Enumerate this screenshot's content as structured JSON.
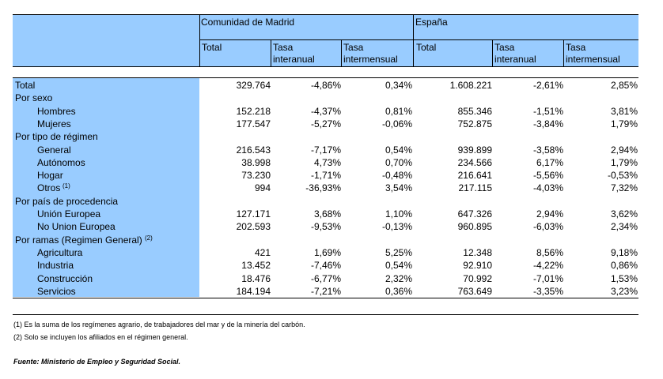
{
  "header": {
    "group1": "Comunidad de Madrid",
    "group2": "España",
    "cols": [
      {
        "l1": "Total",
        "l2": ""
      },
      {
        "l1": "Tasa",
        "l2": "interanual"
      },
      {
        "l1": "Tasa",
        "l2": "intermensual"
      },
      {
        "l1": "Total",
        "l2": ""
      },
      {
        "l1": "Tasa",
        "l2": "interanual"
      },
      {
        "l1": "Tasa",
        "l2": "intermensual"
      }
    ]
  },
  "rows": [
    {
      "label": "Total",
      "sup": "",
      "vals": [
        "329.764",
        "-4,86%",
        "0,34%",
        "1.608.221",
        "-2,61%",
        "2,85%"
      ]
    },
    {
      "label": "Por sexo",
      "sup": "",
      "vals": [
        "",
        "",
        "",
        "",
        "",
        ""
      ]
    },
    {
      "label": "Hombres",
      "sup": "",
      "vals": [
        "152.218",
        "-4,37%",
        "0,81%",
        "855.346",
        "-1,51%",
        "3,81%"
      ]
    },
    {
      "label": "Mujeres",
      "sup": "",
      "vals": [
        "177.547",
        "-5,27%",
        "-0,06%",
        "752.875",
        "-3,84%",
        "1,79%"
      ]
    },
    {
      "label": "Por tipo de régimen",
      "sup": "",
      "vals": [
        "",
        "",
        "",
        "",
        "",
        ""
      ]
    },
    {
      "label": "General",
      "sup": "",
      "vals": [
        "216.543",
        "-7,17%",
        "0,54%",
        "939.899",
        "-3,58%",
        "2,94%"
      ]
    },
    {
      "label": "Autónomos",
      "sup": "",
      "vals": [
        "38.998",
        "4,73%",
        "0,70%",
        "234.566",
        "6,17%",
        "1,79%"
      ]
    },
    {
      "label": "Hogar",
      "sup": "",
      "vals": [
        "73.230",
        "-1,71%",
        "-0,48%",
        "216.641",
        "-5,56%",
        "-0,53%"
      ]
    },
    {
      "label": "Otros",
      "sup": "(1)",
      "vals": [
        "994",
        "-36,93%",
        "3,54%",
        "217.115",
        "-4,03%",
        "7,32%"
      ]
    },
    {
      "label": "Por país de procedencia",
      "sup": "",
      "vals": [
        "",
        "",
        "",
        "",
        "",
        ""
      ]
    },
    {
      "label": "Unión Europea",
      "sup": "",
      "vals": [
        "127.171",
        "3,68%",
        "1,10%",
        "647.326",
        "2,94%",
        "3,62%"
      ]
    },
    {
      "label": "No Union Europea",
      "sup": "",
      "vals": [
        "202.593",
        "-9,53%",
        "-0,13%",
        "960.895",
        "-6,03%",
        "2,34%"
      ]
    },
    {
      "label": "Por ramas (Regimen General)",
      "sup": "(2)",
      "vals": [
        "",
        "",
        "",
        "",
        "",
        ""
      ]
    },
    {
      "label": "Agricultura",
      "sup": "",
      "vals": [
        "421",
        "1,69%",
        "5,25%",
        "12.348",
        "8,56%",
        "9,18%"
      ]
    },
    {
      "label": "Industria",
      "sup": "",
      "vals": [
        "13.452",
        "-7,46%",
        "0,54%",
        "92.910",
        "-4,22%",
        "0,86%"
      ]
    },
    {
      "label": "Construcción",
      "sup": "",
      "vals": [
        "18.476",
        "-6,77%",
        "2,32%",
        "70.992",
        "-7,01%",
        "1,53%"
      ]
    },
    {
      "label": "Servicios",
      "sup": "",
      "vals": [
        "184.194",
        "-7,21%",
        "0,36%",
        "763.649",
        "-3,35%",
        "3,23%"
      ]
    }
  ],
  "footnotes": [
    "(1) Es la suma de los regímenes  agrario, de trabajadores del mar y de la minería del carbón.",
    "(2) Solo se incluyen los afiliados en el régimen general."
  ],
  "source": "Fuente: Ministerio de Empleo y Seguridad Social."
}
